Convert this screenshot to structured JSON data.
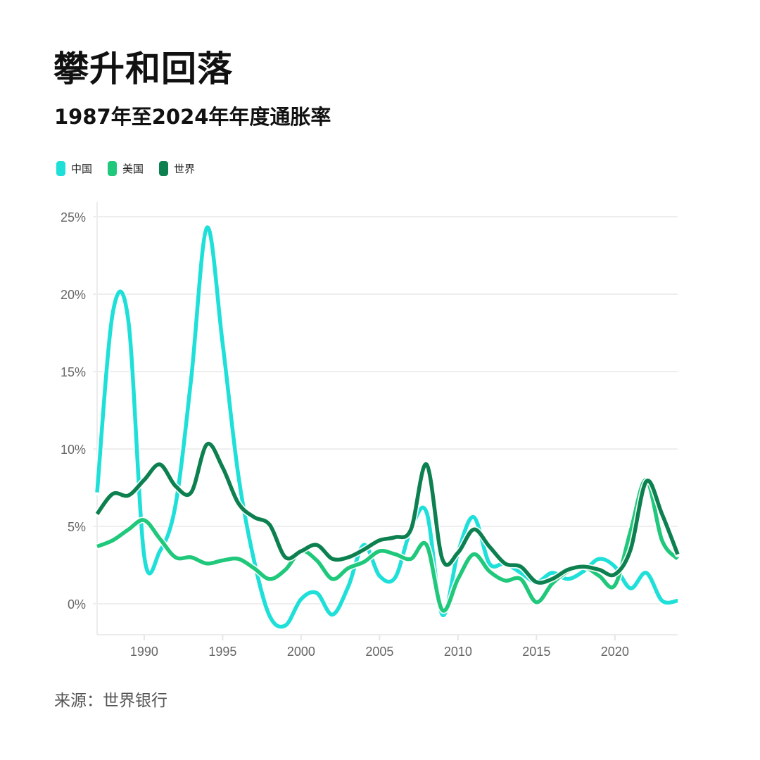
{
  "header": {
    "title": "攀升和回落",
    "subtitle": "1987年至2024年年度通胀率"
  },
  "legend": [
    {
      "label": "中国",
      "color": "#1EE0D8"
    },
    {
      "label": "美国",
      "color": "#1FC87A"
    },
    {
      "label": "世界",
      "color": "#0D8050"
    }
  ],
  "footer": {
    "source": "来源：世界银行"
  },
  "chart_data": {
    "type": "line",
    "title": "攀升和回落",
    "subtitle": "1987年至2024年年度通胀率",
    "xlabel": "",
    "ylabel": "",
    "ylim": [
      -2,
      26
    ],
    "xlim": [
      1987,
      2024
    ],
    "yticks": [
      "0%",
      "5%",
      "10%",
      "15%",
      "20%",
      "25%"
    ],
    "ytick_values": [
      0,
      5,
      10,
      15,
      20,
      25
    ],
    "xticks": [
      "1990",
      "1995",
      "2000",
      "2005",
      "2010",
      "2015",
      "2020"
    ],
    "xtick_values": [
      1990,
      1995,
      2000,
      2005,
      2010,
      2015,
      2020
    ],
    "grid": true,
    "legend_position": "top-left",
    "x": [
      1987,
      1988,
      1989,
      1990,
      1991,
      1992,
      1993,
      1994,
      1995,
      1996,
      1997,
      1998,
      1999,
      2000,
      2001,
      2002,
      2003,
      2004,
      2005,
      2006,
      2007,
      2008,
      2009,
      2010,
      2011,
      2012,
      2013,
      2014,
      2015,
      2016,
      2017,
      2018,
      2019,
      2020,
      2021,
      2022,
      2023,
      2024
    ],
    "series": [
      {
        "name": "中国",
        "color": "#1EE0D8",
        "values": [
          7.2,
          18.8,
          18.2,
          3.1,
          3.4,
          6.4,
          14.6,
          24.3,
          16.8,
          8.3,
          2.8,
          -0.8,
          -1.4,
          0.3,
          0.7,
          -0.7,
          1.1,
          3.8,
          1.8,
          1.7,
          4.8,
          5.9,
          -0.7,
          3.3,
          5.6,
          2.6,
          2.6,
          2.0,
          1.4,
          2.0,
          1.6,
          2.1,
          2.9,
          2.4,
          1.0,
          2.0,
          0.2,
          0.2
        ]
      },
      {
        "name": "美国",
        "color": "#1FC87A",
        "values": [
          3.7,
          4.1,
          4.8,
          5.4,
          4.2,
          3.0,
          3.0,
          2.6,
          2.8,
          2.9,
          2.3,
          1.6,
          2.2,
          3.4,
          2.8,
          1.6,
          2.3,
          2.7,
          3.4,
          3.2,
          2.9,
          3.8,
          -0.4,
          1.6,
          3.2,
          2.1,
          1.5,
          1.6,
          0.1,
          1.3,
          2.1,
          2.4,
          1.8,
          1.2,
          4.7,
          8.0,
          4.1,
          2.9
        ]
      },
      {
        "name": "世界",
        "color": "#0D8050",
        "values": [
          5.8,
          7.1,
          7.0,
          8.0,
          9.0,
          7.6,
          7.2,
          10.3,
          8.8,
          6.5,
          5.6,
          5.1,
          3.0,
          3.4,
          3.8,
          2.9,
          3.0,
          3.5,
          4.1,
          4.3,
          4.8,
          9.0,
          2.9,
          3.3,
          4.8,
          3.7,
          2.6,
          2.4,
          1.4,
          1.6,
          2.2,
          2.4,
          2.2,
          1.9,
          3.5,
          7.9,
          5.8,
          3.2
        ]
      }
    ]
  }
}
